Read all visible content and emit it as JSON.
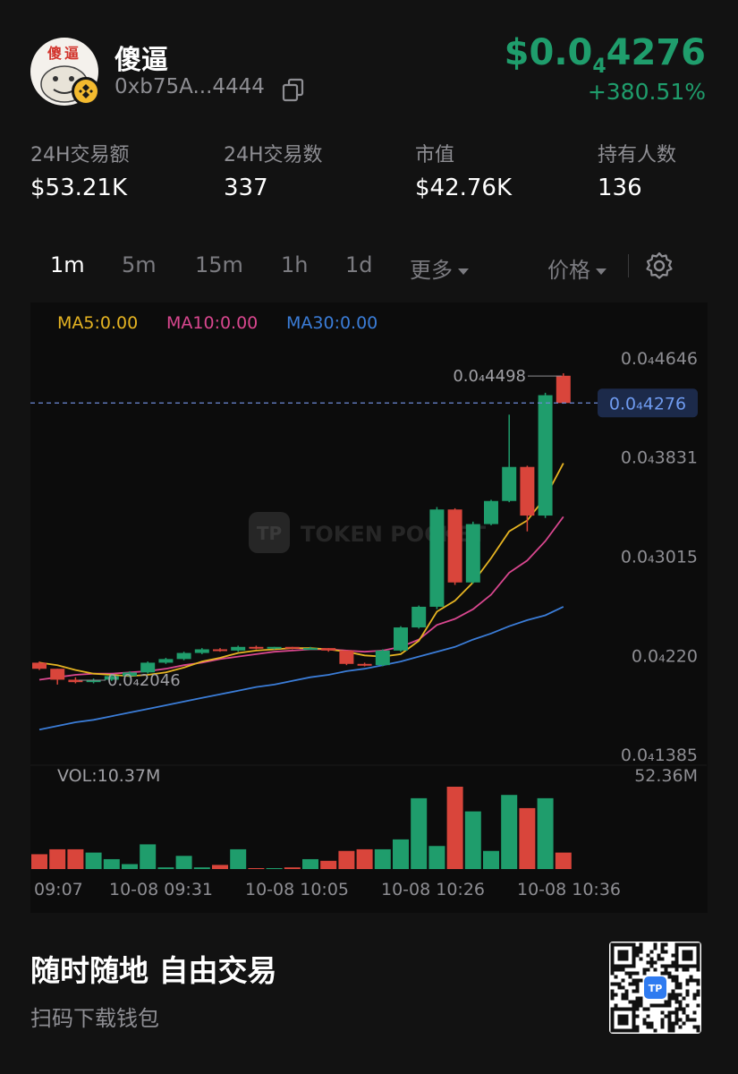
{
  "token": {
    "avatar_text": "傻逼",
    "name": "傻逼",
    "address": "0xb75A...4444",
    "price_prefix": "$0.0",
    "price_sub": "4",
    "price_rest": "4276",
    "change": "+380.51%"
  },
  "stats": [
    {
      "label": "24H交易额",
      "value": "$53.21K"
    },
    {
      "label": "24H交易数",
      "value": "337"
    },
    {
      "label": "市值",
      "value": "$42.76K"
    },
    {
      "label": "持有人数",
      "value": "136"
    }
  ],
  "tabs": {
    "intervals": [
      "1m",
      "5m",
      "15m",
      "1h",
      "1d"
    ],
    "active": "1m",
    "more": "更多",
    "mode": "价格"
  },
  "chart": {
    "ma_legend": [
      {
        "text": "MA5:0.00",
        "color": "#e6b422"
      },
      {
        "text": "MA10:0.00",
        "color": "#d9478f"
      },
      {
        "text": "MA30:0.00",
        "color": "#3b7dd8"
      }
    ],
    "watermark": "TOKEN POCKET",
    "vol_label": "VOL:10.37M",
    "vol_max_label": "52.36M",
    "current_price_label": "0.0₄4276",
    "high_label": "0.0₄4498",
    "low_label": "0.0₄2046",
    "colors": {
      "up": "#1f9d6c",
      "down": "#d9453b",
      "ma5": "#e6b422",
      "ma10": "#d9478f",
      "ma30": "#3b7dd8",
      "current_line": "#6d8ad6"
    }
  },
  "chart_data": {
    "type": "candlestick",
    "y_tick_labels": [
      "0.0₄4646",
      "0.0₄3831",
      "0.0₄3015",
      "0.0₄220",
      "0.0₄1385"
    ],
    "y_ticks": [
      4.646,
      3.831,
      3.015,
      2.2,
      1.385
    ],
    "ylim": [
      1.385,
      4.646
    ],
    "y_unit": "×10⁻⁵",
    "x_tick_labels": [
      "09:07",
      "10-08 09:31",
      "10-08 10:05",
      "10-08 10:26",
      "10-08 10:36"
    ],
    "current_price": 4.276,
    "annotated_high": 4.498,
    "annotated_low": 2.046,
    "candles": [
      {
        "open": 2.14,
        "close": 2.09,
        "high": 2.15,
        "low": 2.08
      },
      {
        "open": 2.09,
        "close": 2.0,
        "high": 2.09,
        "low": 1.96
      },
      {
        "open": 2.0,
        "close": 1.98,
        "high": 2.02,
        "low": 1.97
      },
      {
        "open": 1.98,
        "close": 2.0,
        "high": 2.01,
        "low": 1.97
      },
      {
        "open": 2.0,
        "close": 2.03,
        "high": 2.04,
        "low": 1.99
      },
      {
        "open": 2.03,
        "close": 2.06,
        "high": 2.07,
        "low": 2.02
      },
      {
        "open": 2.06,
        "close": 2.14,
        "high": 2.15,
        "low": 2.05
      },
      {
        "open": 2.14,
        "close": 2.17,
        "high": 2.18,
        "low": 2.13
      },
      {
        "open": 2.17,
        "close": 2.22,
        "high": 2.23,
        "low": 2.16
      },
      {
        "open": 2.22,
        "close": 2.25,
        "high": 2.26,
        "low": 2.21
      },
      {
        "open": 2.25,
        "close": 2.24,
        "high": 2.26,
        "low": 2.23
      },
      {
        "open": 2.24,
        "close": 2.27,
        "high": 2.28,
        "low": 2.23
      },
      {
        "open": 2.27,
        "close": 2.26,
        "high": 2.28,
        "low": 2.25
      },
      {
        "open": 2.26,
        "close": 2.27,
        "high": 2.27,
        "low": 2.25
      },
      {
        "open": 2.27,
        "close": 2.26,
        "high": 2.27,
        "low": 2.25
      },
      {
        "open": 2.26,
        "close": 2.26,
        "high": 2.27,
        "low": 2.25
      },
      {
        "open": 2.26,
        "close": 2.24,
        "high": 2.26,
        "low": 2.23
      },
      {
        "open": 2.24,
        "close": 2.13,
        "high": 2.24,
        "low": 2.12
      },
      {
        "open": 2.13,
        "close": 2.12,
        "high": 2.14,
        "low": 2.11
      },
      {
        "open": 2.12,
        "close": 2.24,
        "high": 2.25,
        "low": 2.11
      },
      {
        "open": 2.24,
        "close": 2.43,
        "high": 2.44,
        "low": 2.23
      },
      {
        "open": 2.43,
        "close": 2.6,
        "high": 2.61,
        "low": 2.42
      },
      {
        "open": 2.6,
        "close": 3.4,
        "high": 3.42,
        "low": 2.58
      },
      {
        "open": 3.4,
        "close": 2.8,
        "high": 3.41,
        "low": 2.78
      },
      {
        "open": 2.8,
        "close": 3.28,
        "high": 3.3,
        "low": 2.79
      },
      {
        "open": 3.28,
        "close": 3.47,
        "high": 3.48,
        "low": 3.27
      },
      {
        "open": 3.47,
        "close": 3.75,
        "high": 4.18,
        "low": 3.46
      },
      {
        "open": 3.75,
        "close": 3.35,
        "high": 3.76,
        "low": 3.22
      },
      {
        "open": 3.35,
        "close": 4.34,
        "high": 4.36,
        "low": 3.33
      },
      {
        "open": 4.5,
        "close": 4.276,
        "high": 4.52,
        "low": 4.27
      }
    ],
    "volumes": [
      0.18,
      0.24,
      0.24,
      0.2,
      0.12,
      0.06,
      0.3,
      0.02,
      0.16,
      0.02,
      0.05,
      0.24,
      0.01,
      0.01,
      0.02,
      0.12,
      0.1,
      0.22,
      0.24,
      0.24,
      0.36,
      0.86,
      0.28,
      1.0,
      0.7,
      0.22,
      0.9,
      0.74,
      0.86,
      0.2
    ],
    "ma5": [
      2.14,
      2.12,
      2.08,
      2.05,
      2.04,
      2.03,
      2.04,
      2.06,
      2.1,
      2.15,
      2.18,
      2.22,
      2.24,
      2.25,
      2.26,
      2.26,
      2.25,
      2.23,
      2.2,
      2.19,
      2.21,
      2.32,
      2.56,
      2.65,
      2.8,
      3.0,
      3.22,
      3.31,
      3.5,
      3.78
    ],
    "ma10": [
      2.0,
      2.02,
      2.04,
      2.05,
      2.05,
      2.06,
      2.07,
      2.09,
      2.12,
      2.14,
      2.17,
      2.19,
      2.21,
      2.23,
      2.24,
      2.25,
      2.25,
      2.24,
      2.23,
      2.24,
      2.27,
      2.33,
      2.45,
      2.5,
      2.58,
      2.7,
      2.88,
      2.98,
      3.14,
      3.34
    ],
    "ma30": [
      1.59,
      1.62,
      1.65,
      1.67,
      1.7,
      1.73,
      1.76,
      1.79,
      1.82,
      1.85,
      1.88,
      1.91,
      1.94,
      1.96,
      1.99,
      2.02,
      2.04,
      2.07,
      2.09,
      2.12,
      2.15,
      2.19,
      2.23,
      2.27,
      2.33,
      2.38,
      2.44,
      2.49,
      2.53,
      2.6
    ]
  },
  "footer": {
    "title": "随时随地 自由交易",
    "subtitle": "扫码下载钱包"
  }
}
